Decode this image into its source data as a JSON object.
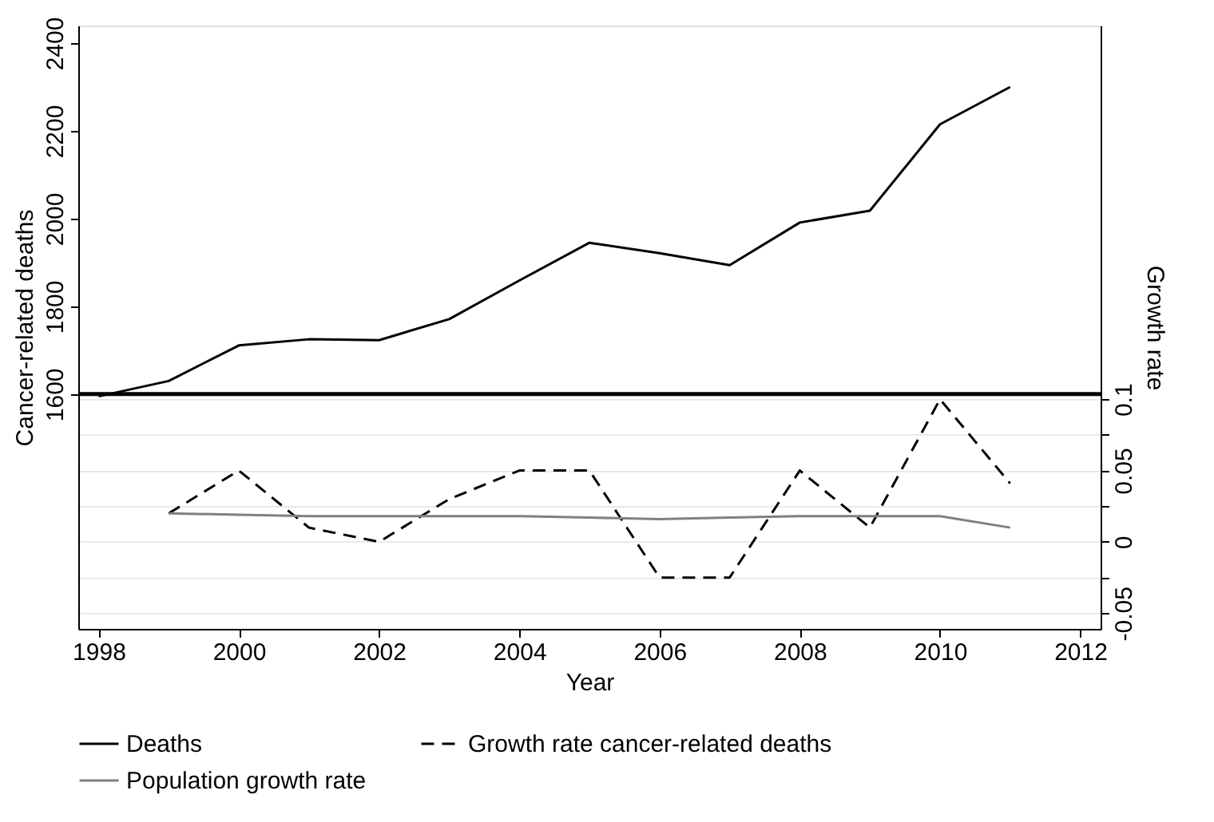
{
  "chart_data": {
    "type": "line",
    "xlabel": "Year",
    "ylabel": "Cancer-related deaths",
    "y2label": "Growth rate",
    "x": [
      1998,
      1999,
      2000,
      2001,
      2002,
      2003,
      2004,
      2005,
      2006,
      2007,
      2008,
      2009,
      2010,
      2011
    ],
    "series": [
      {
        "name": "Deaths",
        "color": "#000000",
        "line_style": "solid",
        "values": [
          1595,
          1630,
          1711,
          1725,
          1723,
          1771,
          1859,
          1945,
          1921,
          1894,
          1991,
          2018,
          2215,
          2300
        ]
      },
      {
        "name": "Growth rate cancer-related deaths",
        "color": "#000000",
        "line_style": "dashed",
        "axis": "y2",
        "values": [
          null,
          0.02,
          0.05,
          0.01,
          0,
          0.03,
          0.05,
          0.05,
          -0.025,
          -0.025,
          0.05,
          0.01,
          0.1,
          0.041
        ]
      },
      {
        "name": "Population growth rate",
        "color": "#808080",
        "line_style": "solid",
        "axis": "y2",
        "values": [
          null,
          0.02,
          0.019,
          0.018,
          0.018,
          0.018,
          0.018,
          0.017,
          0.016,
          0.017,
          0.018,
          0.018,
          0.018,
          0.01
        ]
      }
    ],
    "xlim": [
      1997.71,
      2012.29
    ],
    "xticks": [
      1998,
      2000,
      2002,
      2004,
      2006,
      2008,
      2010,
      2012
    ],
    "ylim": [
      1065,
      2440
    ],
    "yticks": [
      1600,
      1800,
      2000,
      2200,
      2400
    ],
    "y2lim": [
      -0.061,
      0.362
    ],
    "y2ticks": [
      -0.05,
      {
        "value": -0.025,
        "label": null
      },
      0,
      {
        "value": 0.025,
        "label": null
      },
      0.05,
      {
        "value": 0.075,
        "label": null
      },
      0.1
    ],
    "ref_lines": [
      {
        "axis": "y",
        "value": 1600,
        "color": "#000000"
      }
    ],
    "grid": "y",
    "legend": "bottom",
    "marker": "none"
  }
}
